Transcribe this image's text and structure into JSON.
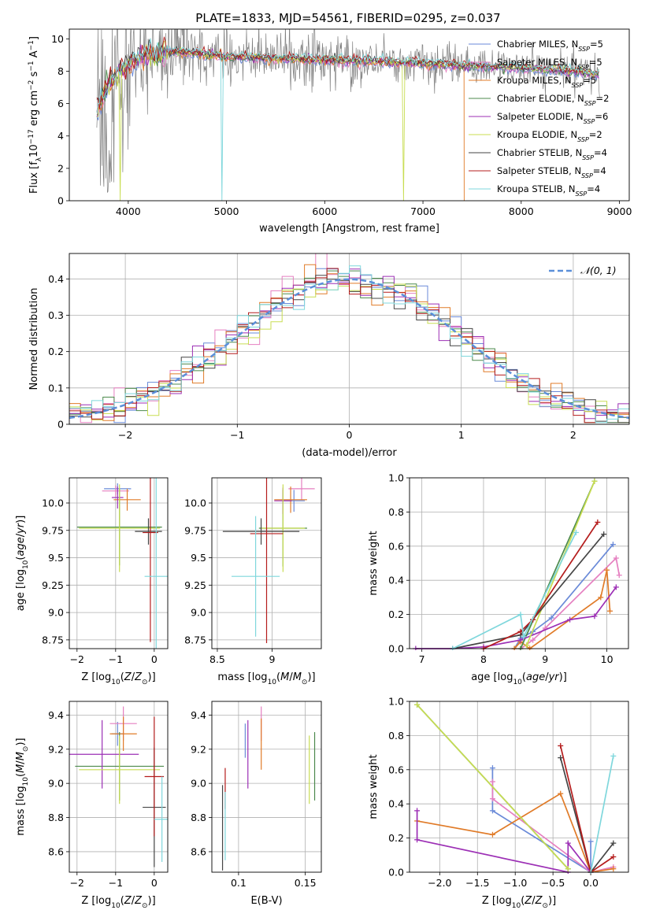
{
  "figure": {
    "title": "PLATE=1833, MJD=54561, FIBERID=0295, z=0.037"
  },
  "colors": {
    "grid": "#b0b0b0",
    "data_spectrum": "#808080",
    "gaussian": "#5b8fd9"
  },
  "models": [
    {
      "label": "Chabrier MILES, N_SSP=5",
      "color": "#6a8ad8"
    },
    {
      "label": "Salpeter MILES, N_SSP=5",
      "color": "#e57fc0"
    },
    {
      "label": "Kroupa MILES, N_SSP=5",
      "color": "#e07b28"
    },
    {
      "label": "Chabrier ELODIE, N_SSP=2",
      "color": "#4c8a4c"
    },
    {
      "label": "Salpeter ELODIE, N_SSP=6",
      "color": "#9c2fb5"
    },
    {
      "label": "Kroupa ELODIE, N_SSP=2",
      "color": "#c8dd52"
    },
    {
      "label": "Chabrier STELIB, N_SSP=4",
      "color": "#454545"
    },
    {
      "label": "Salpeter STELIB, N_SSP=4",
      "color": "#b51d1d"
    },
    {
      "label": "Kroupa STELIB, N_SSP=4",
      "color": "#7fd7dc"
    }
  ],
  "chart_data": [
    {
      "id": "spectrum",
      "type": "line",
      "xlabel": "wavelength [Angstrom, rest frame]",
      "ylabel": "Flux [f_λ 10^-17 erg cm^-2 s^-1 A^-1]",
      "xlim": [
        3400,
        9100
      ],
      "ylim": [
        0,
        10.6
      ],
      "xticks": [
        4000,
        5000,
        6000,
        7000,
        8000,
        9000
      ],
      "yticks": [
        0,
        2,
        4,
        6,
        8,
        10
      ],
      "continuum": [
        [
          3650,
          5.2
        ],
        [
          3800,
          7.2
        ],
        [
          3950,
          8.2
        ],
        [
          4100,
          8.8
        ],
        [
          4300,
          9.1
        ],
        [
          4500,
          9.2
        ],
        [
          4700,
          9.1
        ],
        [
          5000,
          8.9
        ],
        [
          5500,
          8.8
        ],
        [
          6000,
          8.7
        ],
        [
          6500,
          8.6
        ],
        [
          7000,
          8.5
        ],
        [
          7500,
          8.3
        ],
        [
          8000,
          8.2
        ],
        [
          8500,
          8.0
        ],
        [
          8800,
          7.8
        ]
      ]
    },
    {
      "id": "residuals",
      "type": "histogram",
      "xlabel": "(data-model)/error",
      "ylabel": "Normed distribution",
      "xlim": [
        -2.5,
        2.5
      ],
      "ylim": [
        0,
        0.47
      ],
      "xticks": [
        -2,
        -1,
        0,
        1,
        2
      ],
      "yticks": [
        0,
        0.1,
        0.2,
        0.3,
        0.4
      ],
      "legend": "N(0,1)"
    },
    {
      "id": "age_vs_z",
      "type": "scatter",
      "xlabel": "Z [log10(Z/Z☉)]",
      "ylabel": "age  [log10(age/yr)]",
      "xlim": [
        -2.2,
        0.35
      ],
      "ylim": [
        8.67,
        10.23
      ],
      "xticks": [
        -2,
        -1,
        0
      ],
      "yticks": [
        8.75,
        9.0,
        9.25,
        9.5,
        9.75,
        10.0
      ],
      "points": [
        {
          "m": 0,
          "x": -0.95,
          "y": 10.13,
          "xe": 0.35,
          "ye": 0.05
        },
        {
          "m": 1,
          "x": -1.0,
          "y": 10.11,
          "xe": 0.35,
          "ye": 0.05
        },
        {
          "m": 2,
          "x": -0.7,
          "y": 10.03,
          "xe": 0.35,
          "ye": 0.1
        },
        {
          "m": 3,
          "x": -0.9,
          "y": 9.78,
          "xe": 1.1,
          "ye": 0.35
        },
        {
          "m": 4,
          "x": -0.95,
          "y": 10.05,
          "xe": 0.15,
          "ye": 0.1
        },
        {
          "m": 5,
          "x": -0.9,
          "y": 9.77,
          "xe": 1.05,
          "ye": 0.4
        },
        {
          "m": 6,
          "x": -0.15,
          "y": 9.74,
          "xe": 0.35,
          "ye": 0.12
        },
        {
          "m": 7,
          "x": -0.1,
          "y": 9.73,
          "xe": 0.2,
          "ye": 1.0
        },
        {
          "m": 8,
          "x": 0.05,
          "y": 9.33,
          "xe": 0.3,
          "ye": 1.0
        }
      ]
    },
    {
      "id": "age_vs_mass",
      "type": "scatter",
      "xlabel": "mass [log10(M/M☉)]",
      "ylabel": "",
      "xlim": [
        8.45,
        9.45
      ],
      "ylim": [
        8.67,
        10.23
      ],
      "xticks": [
        8.5,
        9.0
      ],
      "yticks": [
        8.75,
        9.0,
        9.25,
        9.5,
        9.75,
        10.0
      ],
      "points": [
        {
          "m": 0,
          "x": 9.2,
          "y": 10.02,
          "xe": 0.1,
          "ye": 0.1
        },
        {
          "m": 1,
          "x": 9.27,
          "y": 10.13,
          "xe": 0.12,
          "ye": 0.1
        },
        {
          "m": 2,
          "x": 9.17,
          "y": 10.03,
          "xe": 0.15,
          "ye": 0.12
        },
        {
          "m": 3,
          "x": 9.1,
          "y": 9.77,
          "xe": 0.22,
          "ye": 0.35
        },
        {
          "m": 4,
          "x": 9.1,
          "y": 10.02,
          "xe": 0.08,
          "ye": 0.12
        },
        {
          "m": 5,
          "x": 9.1,
          "y": 9.77,
          "xe": 0.2,
          "ye": 0.4
        },
        {
          "m": 6,
          "x": 8.9,
          "y": 9.74,
          "xe": 0.35,
          "ye": 0.12
        },
        {
          "m": 7,
          "x": 8.95,
          "y": 9.72,
          "xe": 0.15,
          "ye": 1.0
        },
        {
          "m": 8,
          "x": 8.85,
          "y": 9.33,
          "xe": 0.22,
          "ye": 0.55
        }
      ]
    },
    {
      "id": "massweight_vs_age",
      "type": "line",
      "xlabel": "age  [log10(age/yr)]",
      "ylabel": "mass weight",
      "xlim": [
        6.8,
        10.35
      ],
      "ylim": [
        0,
        1.0
      ],
      "xticks": [
        7,
        8,
        9,
        10
      ],
      "yticks": [
        0,
        0.2,
        0.4,
        0.6,
        0.8,
        1.0
      ],
      "series": [
        {
          "m": 0,
          "x": [
            8.5,
            8.6,
            8.8,
            9.1,
            10.1
          ],
          "y": [
            0.0,
            0.06,
            0.1,
            0.18,
            0.61
          ]
        },
        {
          "m": 1,
          "x": [
            8.6,
            8.8,
            9.0,
            10.15,
            10.2
          ],
          "y": [
            0.0,
            0.05,
            0.12,
            0.53,
            0.43
          ]
        },
        {
          "m": 2,
          "x": [
            8.5,
            8.6,
            8.75,
            9.9,
            10.0,
            10.05
          ],
          "y": [
            0.0,
            0.04,
            0.0,
            0.3,
            0.46,
            0.22
          ]
        },
        {
          "m": 3,
          "x": [
            8.6,
            9.8
          ],
          "y": [
            0.0,
            0.98
          ]
        },
        {
          "m": 4,
          "x": [
            6.9,
            7.5,
            8.0,
            8.6,
            9.4,
            9.8,
            10.15
          ],
          "y": [
            0.0,
            0.0,
            0.01,
            0.05,
            0.17,
            0.19,
            0.36
          ]
        },
        {
          "m": 5,
          "x": [
            8.7,
            9.8
          ],
          "y": [
            0.02,
            0.98
          ]
        },
        {
          "m": 6,
          "x": [
            7.5,
            8.6,
            8.8,
            9.95
          ],
          "y": [
            0.0,
            0.08,
            0.17,
            0.67
          ]
        },
        {
          "m": 7,
          "x": [
            8.0,
            8.6,
            8.8,
            9.85
          ],
          "y": [
            0.0,
            0.1,
            0.17,
            0.74
          ]
        },
        {
          "m": 8,
          "x": [
            7.5,
            8.6,
            8.65,
            9.5
          ],
          "y": [
            0.0,
            0.2,
            0.07,
            0.68
          ]
        }
      ]
    },
    {
      "id": "mass_vs_z",
      "type": "scatter",
      "xlabel": "Z [log10(Z/Z☉)]",
      "ylabel": "mass [log10(M/M☉)]",
      "xlim": [
        -2.2,
        0.35
      ],
      "ylim": [
        8.48,
        9.48
      ],
      "xticks": [
        -2,
        -1,
        0
      ],
      "yticks": [
        8.6,
        8.8,
        9.0,
        9.2,
        9.4
      ],
      "points": [
        {
          "m": 0,
          "x": -0.95,
          "y": 9.29,
          "xe": 0.15,
          "ye": 0.07
        },
        {
          "m": 1,
          "x": -0.8,
          "y": 9.35,
          "xe": 0.35,
          "ye": 0.1
        },
        {
          "m": 2,
          "x": -0.8,
          "y": 9.29,
          "xe": 0.35,
          "ye": 0.1
        },
        {
          "m": 3,
          "x": -0.9,
          "y": 9.1,
          "xe": 1.15,
          "ye": 0.2
        },
        {
          "m": 4,
          "x": -1.35,
          "y": 9.17,
          "xe": 0.95,
          "ye": 0.2
        },
        {
          "m": 5,
          "x": -0.9,
          "y": 9.08,
          "xe": 1.05,
          "ye": 0.2
        },
        {
          "m": 6,
          "x": 0.0,
          "y": 8.86,
          "xe": 0.3,
          "ye": 0.35
        },
        {
          "m": 7,
          "x": 0.0,
          "y": 9.04,
          "xe": 0.25,
          "ye": 0.35
        },
        {
          "m": 8,
          "x": 0.2,
          "y": 8.79,
          "xe": 0.2,
          "ye": 0.25
        }
      ]
    },
    {
      "id": "mass_vs_ebv",
      "type": "scatter",
      "xlabel": "E(B-V)",
      "ylabel": "",
      "xlim": [
        0.08,
        0.162
      ],
      "ylim": [
        8.48,
        9.48
      ],
      "xticks": [
        0.1,
        0.15
      ],
      "yticks": [
        8.6,
        8.8,
        9.0,
        9.2,
        9.4
      ],
      "points": [
        {
          "m": 0,
          "x": 0.105,
          "y": 9.25,
          "ye": 0.1
        },
        {
          "m": 1,
          "x": 0.117,
          "y": 9.35,
          "ye": 0.1
        },
        {
          "m": 2,
          "x": 0.117,
          "y": 9.23,
          "ye": 0.15
        },
        {
          "m": 3,
          "x": 0.157,
          "y": 9.1,
          "ye": 0.2
        },
        {
          "m": 4,
          "x": 0.107,
          "y": 9.17,
          "ye": 0.2
        },
        {
          "m": 5,
          "x": 0.153,
          "y": 9.08,
          "ye": 0.2
        },
        {
          "m": 6,
          "x": 0.088,
          "y": 8.74,
          "ye": 0.25
        },
        {
          "m": 7,
          "x": 0.09,
          "y": 8.97,
          "ye": 0.12
        },
        {
          "m": 8,
          "x": 0.09,
          "y": 8.75,
          "ye": 0.2
        }
      ]
    },
    {
      "id": "massweight_vs_z",
      "type": "line",
      "xlabel": "Z [log10(Z/Z☉)]",
      "ylabel": "mass weight",
      "xlim": [
        -2.4,
        0.5
      ],
      "ylim": [
        0,
        1.0
      ],
      "xticks": [
        -2.0,
        -1.5,
        -1.0,
        -0.5,
        0.0
      ],
      "yticks": [
        0,
        0.2,
        0.4,
        0.6,
        0.8,
        1.0
      ],
      "series": [
        {
          "m": 0,
          "x": [
            -1.3,
            -1.3,
            0.0,
            0.0
          ],
          "y": [
            0.61,
            0.36,
            0.0,
            0.18
          ]
        },
        {
          "m": 1,
          "x": [
            -1.3,
            -1.3,
            0.0,
            0.3
          ],
          "y": [
            0.53,
            0.43,
            0.0,
            0.03
          ]
        },
        {
          "m": 2,
          "x": [
            -2.3,
            -1.3,
            -0.4,
            0.0,
            0.3
          ],
          "y": [
            0.3,
            0.22,
            0.46,
            0.0,
            0.02
          ]
        },
        {
          "m": 3,
          "x": [
            -2.3,
            -0.3
          ],
          "y": [
            0.98,
            0.02
          ]
        },
        {
          "m": 4,
          "x": [
            -2.3,
            -2.3,
            -0.3,
            -0.3,
            0.0
          ],
          "y": [
            0.36,
            0.19,
            0.0,
            0.17,
            0.0
          ]
        },
        {
          "m": 5,
          "x": [
            -2.3,
            -0.3
          ],
          "y": [
            0.98,
            0.02
          ]
        },
        {
          "m": 6,
          "x": [
            -0.4,
            0.0,
            0.3
          ],
          "y": [
            0.67,
            0.0,
            0.17
          ]
        },
        {
          "m": 7,
          "x": [
            -0.4,
            0.0,
            0.3
          ],
          "y": [
            0.74,
            0.0,
            0.09
          ]
        },
        {
          "m": 8,
          "x": [
            0.0,
            0.3
          ],
          "y": [
            0.0,
            0.68
          ]
        }
      ]
    }
  ]
}
